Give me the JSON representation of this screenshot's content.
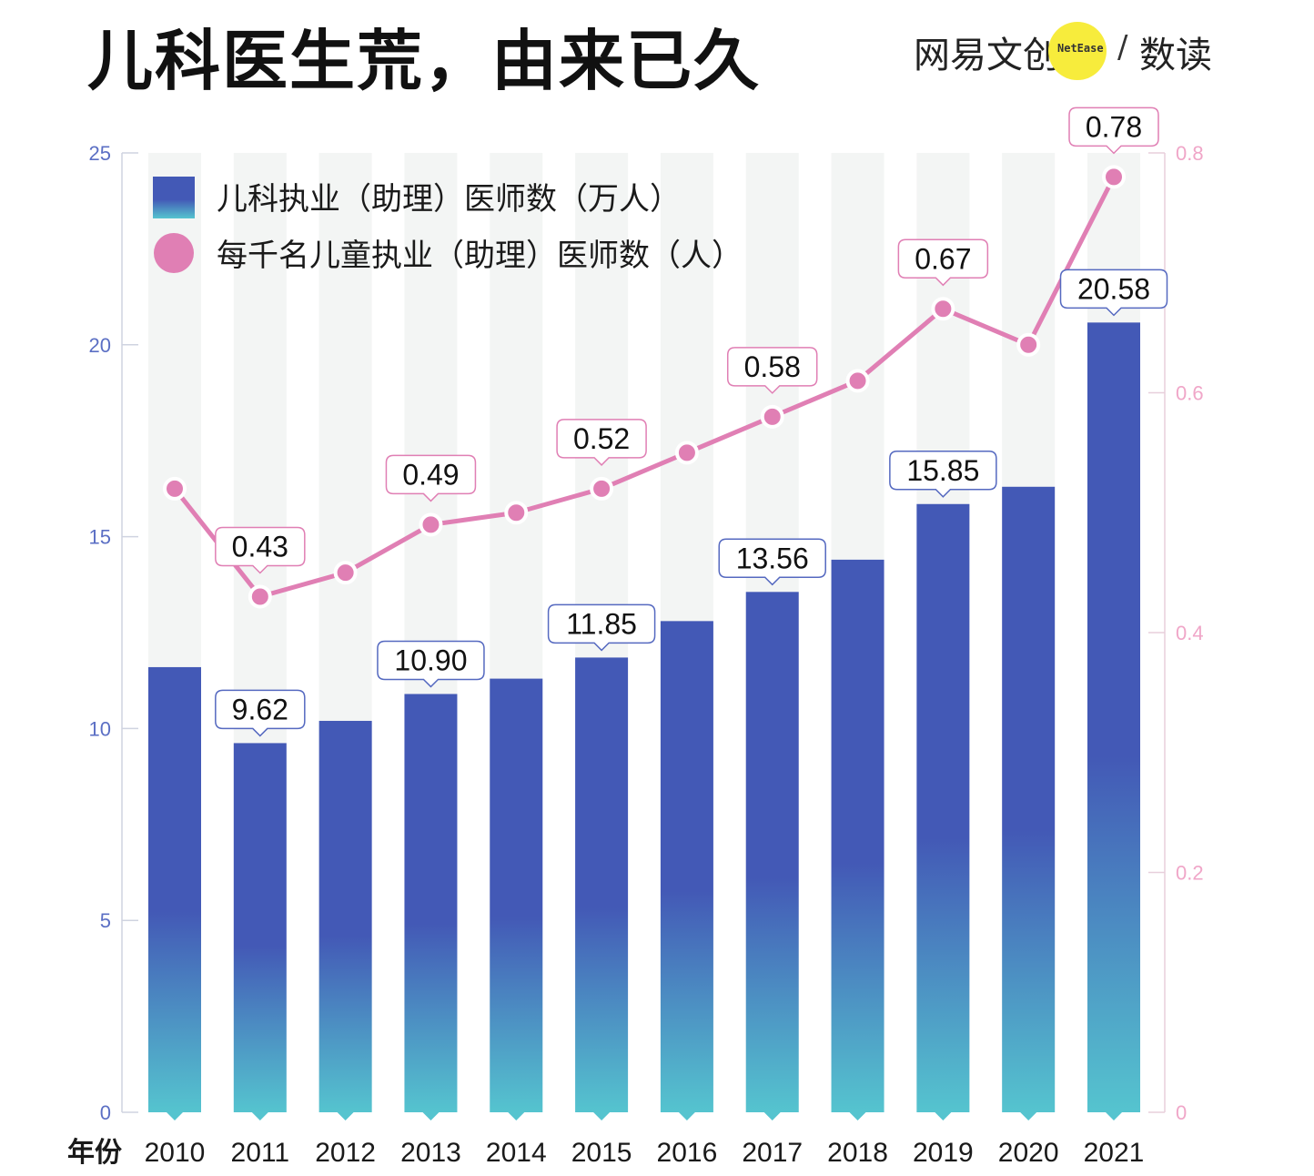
{
  "header": {
    "title": "儿科医生荒，由来已久",
    "brand_left": "网易文创",
    "brand_badge": "NetEase",
    "brand_slash": "/",
    "brand_right": "数读"
  },
  "colors": {
    "bar_top": "#4359b6",
    "bar_bottom": "#55c4cf",
    "line": "#e07fb4",
    "left_axis": "#5b6fc4",
    "right_axis": "#f0a6c8",
    "band": "#f3f5f4",
    "label_border_bar": "#5569c0",
    "label_border_line": "#e07fb4"
  },
  "chart_data": {
    "type": "bar",
    "x_axis_label": "年份",
    "categories": [
      "2010",
      "2011",
      "2012",
      "2013",
      "2014",
      "2015",
      "2016",
      "2017",
      "2018",
      "2019",
      "2020",
      "2021"
    ],
    "series": [
      {
        "name": "儿科执业（助理）医师数（万人）",
        "type": "bar",
        "axis": "left",
        "values": [
          11.6,
          9.62,
          10.2,
          10.9,
          11.3,
          11.85,
          12.8,
          13.56,
          14.4,
          15.85,
          16.3,
          20.58
        ]
      },
      {
        "name": "每千名儿童执业（助理）医师数（人）",
        "type": "line",
        "axis": "right",
        "values": [
          0.52,
          0.43,
          0.45,
          0.49,
          0.5,
          0.52,
          0.55,
          0.58,
          0.61,
          0.67,
          0.64,
          0.78
        ]
      }
    ],
    "y_left": {
      "min": 0,
      "max": 25,
      "ticks": [
        0,
        5,
        10,
        15,
        20,
        25
      ]
    },
    "y_right": {
      "min": 0,
      "max": 0.8,
      "ticks": [
        0,
        0.2,
        0.4,
        0.6,
        0.8
      ]
    },
    "bar_labels": [
      {
        "index": 1,
        "text": "9.62"
      },
      {
        "index": 3,
        "text": "10.90"
      },
      {
        "index": 5,
        "text": "11.85"
      },
      {
        "index": 7,
        "text": "13.56"
      },
      {
        "index": 9,
        "text": "15.85"
      },
      {
        "index": 11,
        "text": "20.58"
      }
    ],
    "line_labels": [
      {
        "index": 1,
        "text": "0.43"
      },
      {
        "index": 3,
        "text": "0.49"
      },
      {
        "index": 5,
        "text": "0.52"
      },
      {
        "index": 7,
        "text": "0.58"
      },
      {
        "index": 9,
        "text": "0.67"
      },
      {
        "index": 11,
        "text": "0.78"
      }
    ],
    "legend_position": "top-left"
  }
}
